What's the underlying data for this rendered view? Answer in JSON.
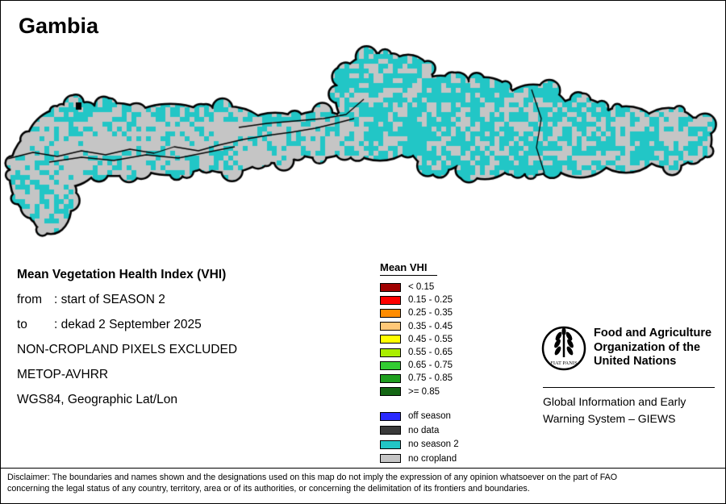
{
  "title": "Gambia",
  "info": {
    "heading": "Mean Vegetation Health Index (VHI)",
    "from_label": "from",
    "from_value": ": start of SEASON 2",
    "to_label": "to",
    "to_value": ": dekad 2 September 2025",
    "note": "NON-CROPLAND PIXELS EXCLUDED",
    "sensor": "METOP-AVHRR",
    "projection": "WGS84, Geographic Lat/Lon"
  },
  "legend": {
    "title": "Mean VHI",
    "classes": [
      {
        "label": "< 0.15",
        "color": "#A00000"
      },
      {
        "label": "0.15 - 0.25",
        "color": "#FF0000"
      },
      {
        "label": "0.25 - 0.35",
        "color": "#FF8C00"
      },
      {
        "label": "0.35 - 0.45",
        "color": "#FFC878"
      },
      {
        "label": "0.45 - 0.55",
        "color": "#FFFF00"
      },
      {
        "label": "0.55 - 0.65",
        "color": "#AAEE00"
      },
      {
        "label": "0.65 - 0.75",
        "color": "#33CC33"
      },
      {
        "label": "0.75 - 0.85",
        "color": "#1F9E1F"
      },
      {
        "label": ">= 0.85",
        "color": "#146614"
      }
    ],
    "extras": [
      {
        "label": "off season",
        "color": "#2A2AFF"
      },
      {
        "label": "no data",
        "color": "#3A3A3A"
      },
      {
        "label": "no season 2",
        "color": "#22C6C6"
      },
      {
        "label": "no cropland",
        "color": "#C5C5C5"
      }
    ]
  },
  "map": {
    "colors": {
      "no_season2": "#22C6C6",
      "no_cropland": "#C5C5C5",
      "outline": "#000000"
    }
  },
  "fao": {
    "org_lines": [
      "Food and Agriculture",
      "Organization of the",
      "United Nations"
    ],
    "giews_lines": [
      "Global Information and Early",
      "Warning System – GIEWS"
    ],
    "logo_motto": "FIAT PANIS"
  },
  "disclaimer_lines": [
    "Disclaimer: The boundaries and names shown and the designations used on this map do not imply the expression of any opinion whatsoever on the part of FAO",
    "concerning the legal status of any country, territory, area or of its authorities, or concerning the delimitation of its frontiers and boundaries."
  ]
}
